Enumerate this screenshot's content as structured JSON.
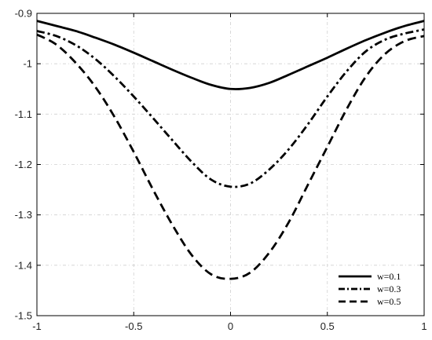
{
  "chart_data": {
    "type": "line",
    "title": "",
    "xlabel": "",
    "ylabel": "",
    "xlim": [
      -1,
      1
    ],
    "ylim": [
      -1.5,
      -0.9
    ],
    "grid": true,
    "legend_position": "bottom-right",
    "x_ticks": [
      "-1",
      "-0.5",
      "0",
      "0.5",
      "1"
    ],
    "y_ticks": [
      "-0.9",
      "-1",
      "-1.1",
      "-1.2",
      "-1.3",
      "-1.4",
      "-1.5"
    ],
    "series": [
      {
        "name": "w=0.1",
        "style": "solid",
        "color": "#000000",
        "x": [
          -1,
          -0.9,
          -0.8,
          -0.7,
          -0.6,
          -0.5,
          -0.4,
          -0.3,
          -0.2,
          -0.1,
          0,
          0.1,
          0.2,
          0.3,
          0.4,
          0.5,
          0.6,
          0.7,
          0.8,
          0.9,
          1
        ],
        "y": [
          -0.915,
          -0.925,
          -0.935,
          -0.948,
          -0.962,
          -0.978,
          -0.995,
          -1.012,
          -1.028,
          -1.042,
          -1.05,
          -1.048,
          -1.038,
          -1.022,
          -1.005,
          -0.988,
          -0.97,
          -0.953,
          -0.938,
          -0.925,
          -0.915
        ]
      },
      {
        "name": "w=0.3",
        "style": "dashdot",
        "color": "#000000",
        "x": [
          -1,
          -0.9,
          -0.8,
          -0.7,
          -0.6,
          -0.5,
          -0.4,
          -0.3,
          -0.2,
          -0.1,
          0,
          0.1,
          0.2,
          0.3,
          0.4,
          0.5,
          0.6,
          0.7,
          0.8,
          0.9,
          1
        ],
        "y": [
          -0.935,
          -0.945,
          -0.963,
          -0.99,
          -1.025,
          -1.065,
          -1.108,
          -1.152,
          -1.195,
          -1.23,
          -1.244,
          -1.238,
          -1.21,
          -1.17,
          -1.12,
          -1.065,
          -1.015,
          -0.975,
          -0.952,
          -0.94,
          -0.932
        ]
      },
      {
        "name": "w=0.5",
        "style": "dashed",
        "color": "#000000",
        "x": [
          -1,
          -0.9,
          -0.8,
          -0.7,
          -0.6,
          -0.5,
          -0.4,
          -0.3,
          -0.2,
          -0.1,
          0,
          0.1,
          0.2,
          0.3,
          0.4,
          0.5,
          0.6,
          0.7,
          0.8,
          0.9,
          1
        ],
        "y": [
          -0.942,
          -0.962,
          -0.998,
          -1.045,
          -1.105,
          -1.175,
          -1.25,
          -1.32,
          -1.38,
          -1.418,
          -1.427,
          -1.415,
          -1.375,
          -1.315,
          -1.24,
          -1.165,
          -1.09,
          -1.025,
          -0.98,
          -0.955,
          -0.945
        ]
      }
    ]
  }
}
